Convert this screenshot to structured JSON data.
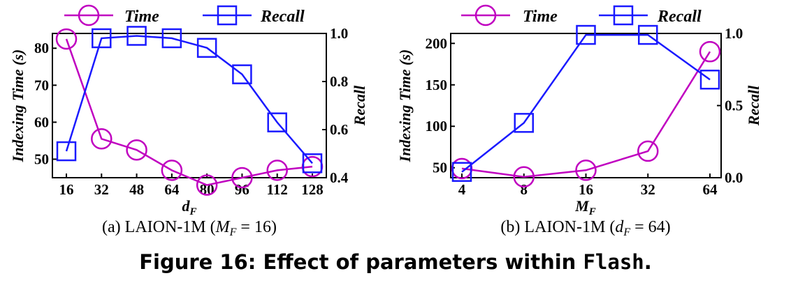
{
  "legend": {
    "time": "Time",
    "recall": "Recall"
  },
  "colors": {
    "time": "#c000c0",
    "recall": "#1a1aff"
  },
  "figure_caption": {
    "prefix": "Figure 16: Effect of parameters within ",
    "code": "Flash",
    "suffix": "."
  },
  "chart_data": [
    {
      "type": "line",
      "subcaption": "(a) LAION-1M (M_F = 16)",
      "caption_parts": {
        "pre": "(a) LAION-1M (",
        "var": "M",
        "sub": "F",
        "post": " = 16)"
      },
      "xlabel": {
        "var": "d",
        "sub": "F"
      },
      "ylabel": "Indexing Time (s)",
      "y2label": "Recall",
      "categories": [
        "16",
        "32",
        "48",
        "64",
        "80",
        "96",
        "112",
        "128"
      ],
      "ylim": [
        45,
        84
      ],
      "yticks": [
        "50",
        "60",
        "70",
        "80"
      ],
      "y2lim": [
        0.4,
        1.0
      ],
      "y2ticks": [
        "0.4",
        "0.6",
        "0.8",
        "1.0"
      ],
      "series": [
        {
          "name": "Time",
          "axis": "left",
          "values": [
            82.5,
            55.5,
            52.5,
            47.0,
            43.0,
            45.0,
            47.0,
            48.0
          ]
        },
        {
          "name": "Recall",
          "axis": "right",
          "values": [
            0.51,
            0.98,
            0.99,
            0.98,
            0.94,
            0.83,
            0.63,
            0.46
          ]
        }
      ]
    },
    {
      "type": "line",
      "subcaption": "(b) LAION-1M (d_F = 64)",
      "caption_parts": {
        "pre": "(b) LAION-1M (",
        "var": "d",
        "sub": "F",
        "post": " = 64)"
      },
      "xlabel": {
        "var": "M",
        "sub": "F"
      },
      "ylabel": "Indexing Time (s)",
      "y2label": "Recall",
      "categories": [
        "4",
        "8",
        "16",
        "32",
        "64"
      ],
      "ylim": [
        38,
        212
      ],
      "yticks": [
        "50",
        "100",
        "150",
        "200"
      ],
      "y2lim": [
        0.0,
        1.0
      ],
      "y2ticks": [
        "0.0",
        "0.5",
        "1.0"
      ],
      "series": [
        {
          "name": "Time",
          "axis": "left",
          "values": [
            49,
            39,
            47,
            70,
            190
          ]
        },
        {
          "name": "Recall",
          "axis": "right",
          "values": [
            0.04,
            0.38,
            0.99,
            0.99,
            0.68
          ]
        }
      ]
    }
  ]
}
